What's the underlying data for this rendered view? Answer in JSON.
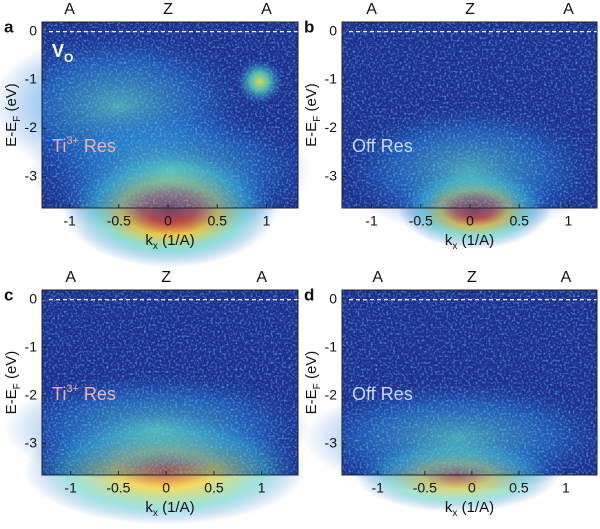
{
  "chart_data": [
    {
      "type": "heatmap",
      "panel_label": "a",
      "annotations": [
        {
          "parts": [
            "V",
            "O"
          ],
          "color": "#ffffff"
        },
        {
          "parts": [
            "Ti",
            "3+",
            " Res"
          ],
          "color": "#f4b0a8"
        }
      ],
      "x_label": [
        "k",
        "x",
        " (1/A)"
      ],
      "y_label": [
        "E-E",
        "F",
        " (eV)"
      ],
      "xlim": [
        -1.28,
        1.32
      ],
      "xticks": [
        -1,
        -0.5,
        0,
        0.5,
        1
      ],
      "ylim": [
        -3.65,
        0.2
      ],
      "yticks": [
        -3,
        -2,
        -1,
        0
      ],
      "top_ticks": [
        {
          "value": -1,
          "label": "A"
        },
        {
          "value": 0,
          "label": "Z"
        },
        {
          "value": 1,
          "label": "A"
        }
      ],
      "reference_line": 0
    },
    {
      "type": "heatmap",
      "panel_label": "b",
      "annotations": [
        {
          "parts": [
            "Off Res"
          ],
          "color": "#c8d8f0"
        }
      ],
      "x_label": [
        "k",
        "x",
        " (1/A)"
      ],
      "y_label": [
        "E-E",
        "F",
        " (eV)"
      ],
      "xlim": [
        -1.3,
        1.29
      ],
      "xticks": [
        -1,
        -0.5,
        0,
        0.5,
        1
      ],
      "ylim": [
        -3.65,
        0.2
      ],
      "yticks": [
        -3,
        -2,
        -1,
        0
      ],
      "top_ticks": [
        {
          "value": -1,
          "label": "A"
        },
        {
          "value": 0,
          "label": "Z"
        },
        {
          "value": 1,
          "label": "A"
        }
      ],
      "reference_line": 0
    },
    {
      "type": "heatmap",
      "panel_label": "c",
      "annotations": [
        {
          "parts": [
            "Ti",
            "3+",
            " Res"
          ],
          "color": "#f4b0a8"
        }
      ],
      "x_label": [
        "k",
        "x",
        " (1/A)"
      ],
      "y_label": [
        "E-E",
        "F",
        " (eV)"
      ],
      "xlim": [
        -1.3,
        1.38
      ],
      "xticks": [
        -1,
        -0.5,
        0,
        0.5,
        1
      ],
      "ylim": [
        -3.65,
        0.2
      ],
      "yticks": [
        -3,
        -2,
        -1,
        0
      ],
      "top_ticks": [
        {
          "value": -1,
          "label": "A"
        },
        {
          "value": 0,
          "label": "Z"
        },
        {
          "value": 1,
          "label": "A"
        }
      ],
      "reference_line": 0
    },
    {
      "type": "heatmap",
      "panel_label": "d",
      "annotations": [
        {
          "parts": [
            "Off Res"
          ],
          "color": "#c8d8f0"
        }
      ],
      "x_label": [
        "k",
        "x",
        " (1/A)"
      ],
      "y_label": [
        "E-E",
        "F",
        " (eV)"
      ],
      "xlim": [
        -1.38,
        1.33
      ],
      "xticks": [
        -1,
        -0.5,
        0,
        0.5,
        1
      ],
      "ylim": [
        -3.65,
        0.2
      ],
      "yticks": [
        -3,
        -2,
        -1,
        0
      ],
      "top_ticks": [
        {
          "value": -1,
          "label": "A"
        },
        {
          "value": 0,
          "label": "Z"
        },
        {
          "value": 1,
          "label": "A"
        }
      ],
      "reference_line": 0
    }
  ]
}
